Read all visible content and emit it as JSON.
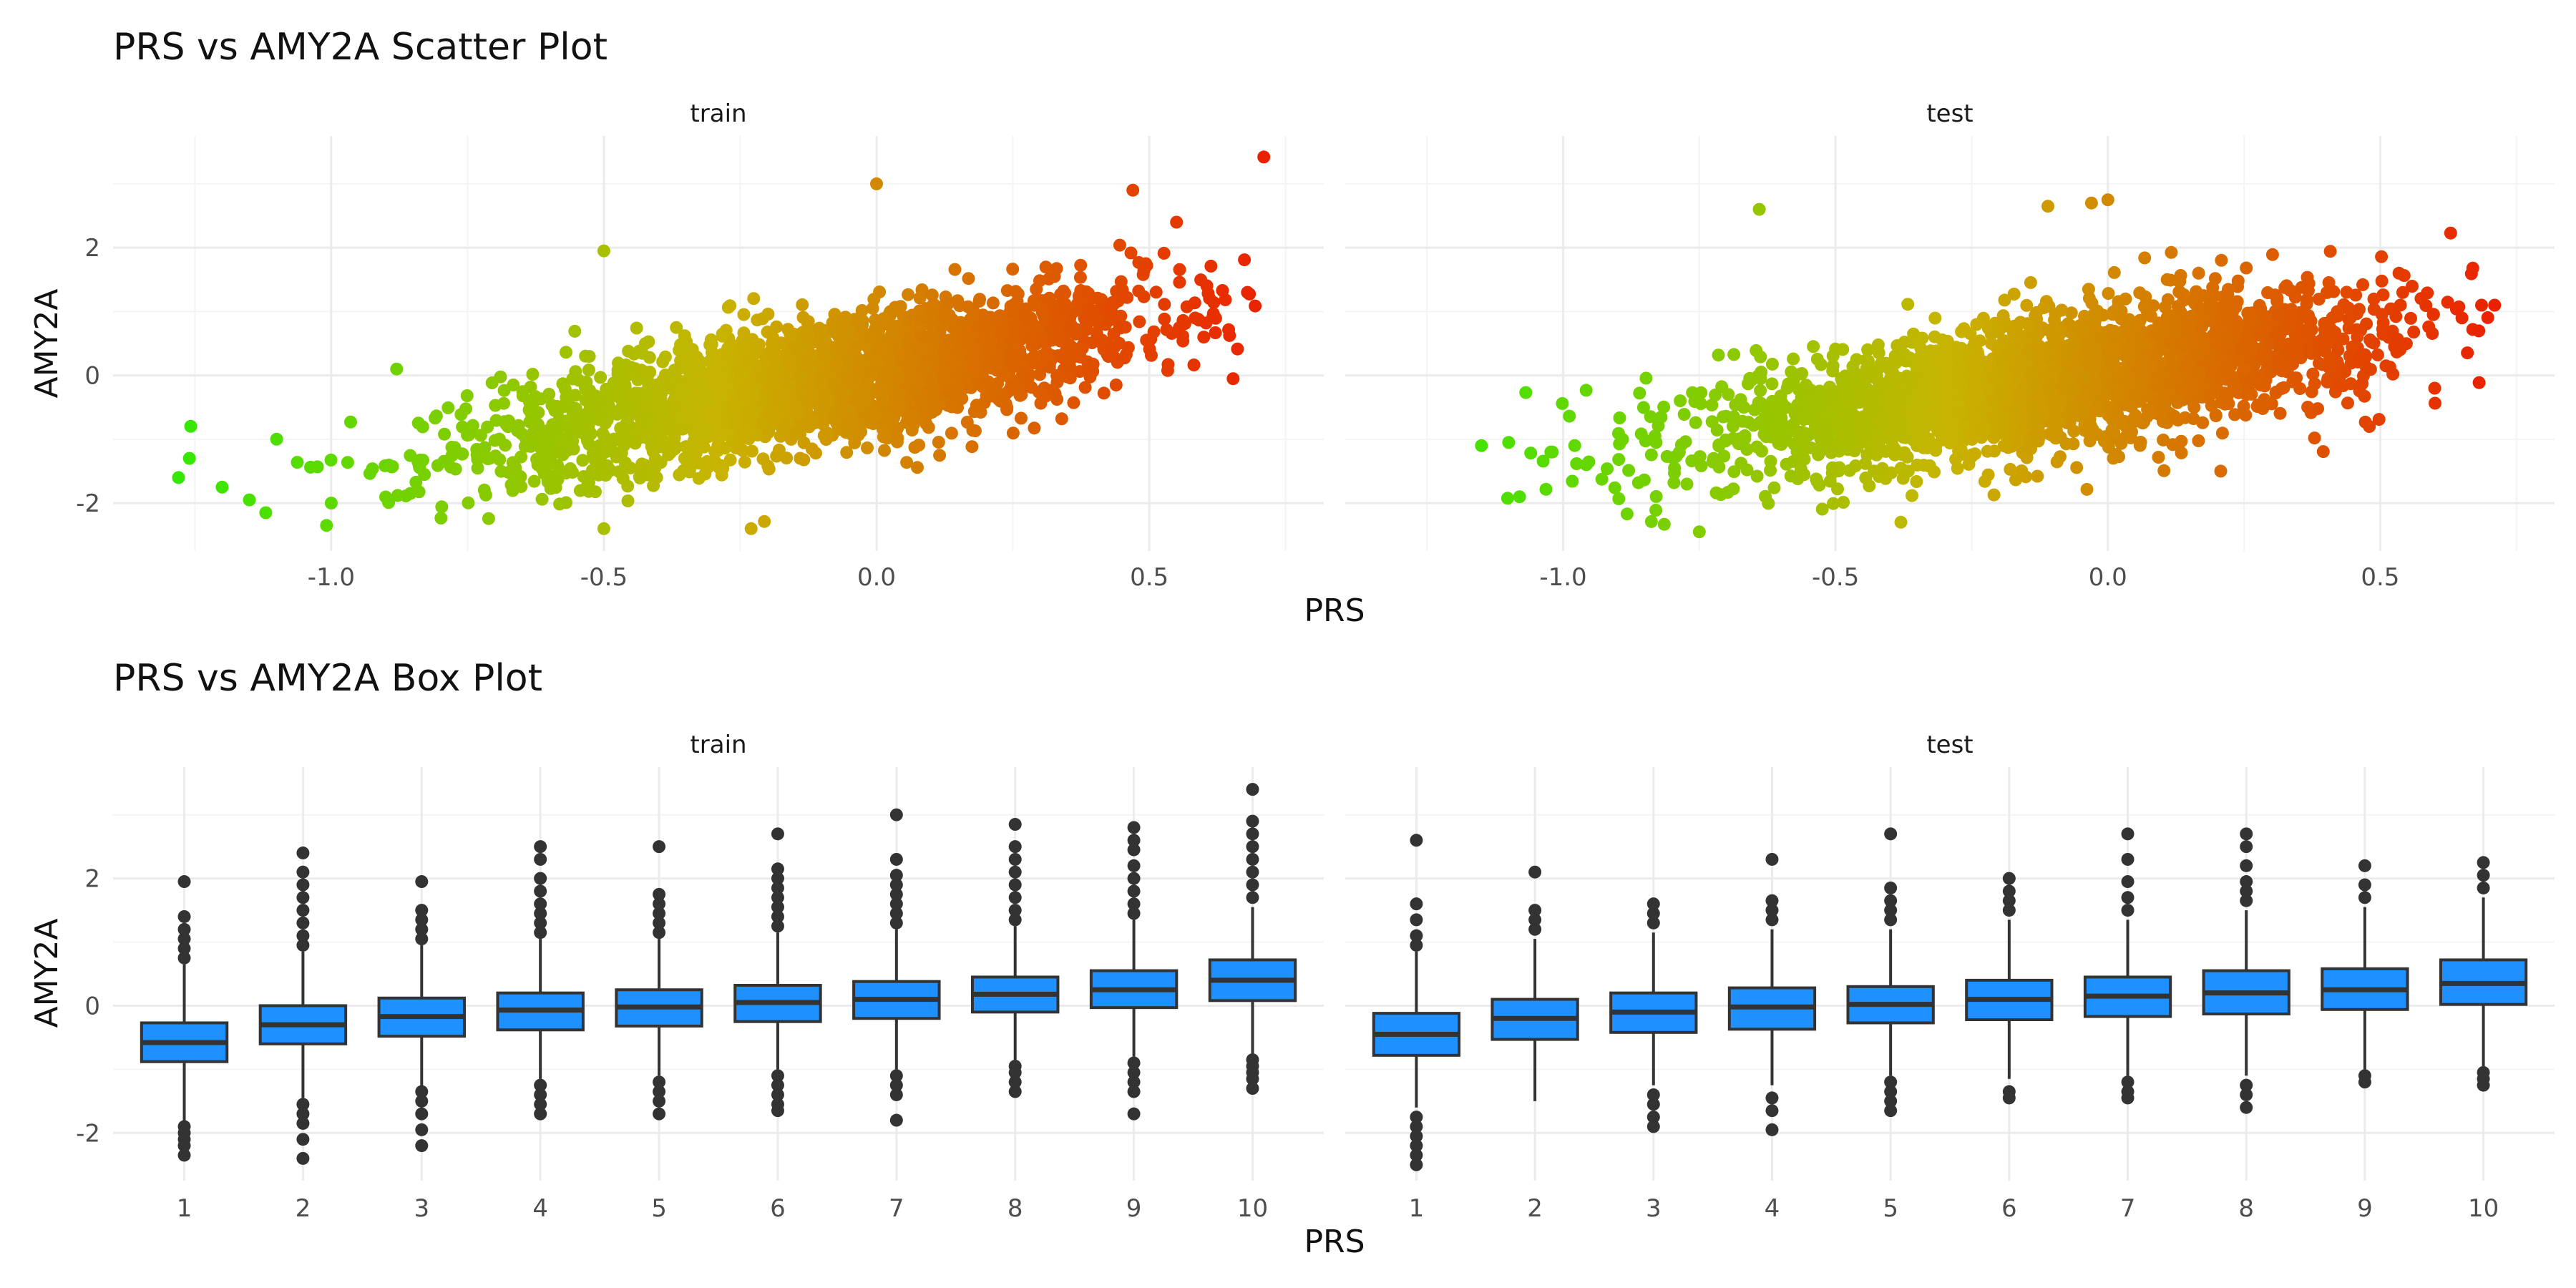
{
  "chart_data": [
    {
      "type": "scatter",
      "title": "PRS vs AMY2A Scatter Plot",
      "xlabel": "PRS",
      "ylabel": "AMY2A",
      "xlim": [
        -1.4,
        0.82
      ],
      "ylim": [
        -2.75,
        3.75
      ],
      "xticks": [
        -1.0,
        -0.5,
        0.0,
        0.5
      ],
      "xtick_labels": [
        "-1.0",
        "-0.5",
        "0.0",
        "0.5"
      ],
      "yticks": [
        -2,
        0,
        2
      ],
      "ytick_labels": [
        "-2",
        "0",
        "2"
      ],
      "color_scale": {
        "low": "#22ee00",
        "mid": "#c8b400",
        "high": "#ee1100",
        "variable": "PRS"
      },
      "grid": true,
      "legend": "none",
      "panels": [
        {
          "name": "train",
          "trend": {
            "slope": 1.55,
            "intercept": 0.05,
            "residual_sd": 0.5
          },
          "x_range": [
            -1.28,
            0.71
          ],
          "highlight_points": [
            {
              "x": 0.71,
              "y": 3.42
            },
            {
              "x": -1.28,
              "y": -1.6
            },
            {
              "x": -1.26,
              "y": -1.3
            },
            {
              "x": -1.2,
              "y": -1.75
            },
            {
              "x": -1.15,
              "y": -1.95
            },
            {
              "x": -1.12,
              "y": -2.15
            },
            {
              "x": -1.1,
              "y": -1.0
            },
            {
              "x": -1.0,
              "y": -2.0
            },
            {
              "x": 0.0,
              "y": 3.0
            },
            {
              "x": -0.5,
              "y": -2.4
            },
            {
              "x": -0.23,
              "y": -2.4
            },
            {
              "x": 0.47,
              "y": 2.9
            },
            {
              "x": 0.55,
              "y": 2.4
            },
            {
              "x": 0.68,
              "y": 1.3
            },
            {
              "x": 0.6,
              "y": 0.6
            },
            {
              "x": -0.88,
              "y": 0.1
            },
            {
              "x": -0.5,
              "y": 1.95
            }
          ]
        },
        {
          "name": "test",
          "trend": {
            "slope": 1.35,
            "intercept": 0.05,
            "residual_sd": 0.52
          },
          "x_range": [
            -1.15,
            0.71
          ],
          "highlight_points": [
            {
              "x": -0.64,
              "y": 2.6
            },
            {
              "x": 0.0,
              "y": 2.75
            },
            {
              "x": -0.03,
              "y": 2.7
            },
            {
              "x": -0.11,
              "y": 2.65
            },
            {
              "x": 0.67,
              "y": 1.68
            },
            {
              "x": 0.71,
              "y": 1.1
            },
            {
              "x": -1.15,
              "y": -1.1
            },
            {
              "x": -1.1,
              "y": -1.05
            },
            {
              "x": -1.08,
              "y": -1.9
            },
            {
              "x": -1.02,
              "y": -1.2
            },
            {
              "x": -0.75,
              "y": -2.45
            },
            {
              "x": -0.38,
              "y": -2.3
            },
            {
              "x": 0.48,
              "y": -0.8
            },
            {
              "x": 0.6,
              "y": -0.2
            },
            {
              "x": 0.65,
              "y": 0.9
            }
          ]
        }
      ]
    },
    {
      "type": "box",
      "title": "PRS vs AMY2A Box Plot",
      "xlabel": "PRS",
      "ylabel": "AMY2A",
      "categories": [
        "1",
        "2",
        "3",
        "4",
        "5",
        "6",
        "7",
        "8",
        "9",
        "10"
      ],
      "ylim": [
        -2.75,
        3.75
      ],
      "yticks": [
        -2,
        0,
        2
      ],
      "ytick_labels": [
        "-2",
        "0",
        "2"
      ],
      "box_color": "#1e90ff",
      "grid": true,
      "legend": "none",
      "panels": [
        {
          "name": "train",
          "boxes": [
            {
              "category": "1",
              "q1": -0.88,
              "median": -0.58,
              "q3": -0.27,
              "lower": -1.8,
              "upper": 0.65,
              "outliers": [
                -1.9,
                -2.0,
                -2.1,
                -2.2,
                -2.35,
                0.75,
                0.9,
                1.05,
                1.2,
                1.4,
                1.95
              ]
            },
            {
              "category": "2",
              "q1": -0.6,
              "median": -0.3,
              "q3": 0.0,
              "lower": -1.45,
              "upper": 0.85,
              "outliers": [
                -1.55,
                -1.7,
                -1.85,
                -2.1,
                -2.4,
                0.95,
                1.1,
                1.3,
                1.5,
                1.7,
                1.9,
                2.1,
                2.4
              ]
            },
            {
              "category": "3",
              "q1": -0.48,
              "median": -0.17,
              "q3": 0.12,
              "lower": -1.28,
              "upper": 0.95,
              "outliers": [
                -1.35,
                -1.5,
                -1.7,
                -1.95,
                -2.2,
                1.05,
                1.2,
                1.35,
                1.5,
                1.95
              ]
            },
            {
              "category": "4",
              "q1": -0.38,
              "median": -0.07,
              "q3": 0.2,
              "lower": -1.15,
              "upper": 1.05,
              "outliers": [
                -1.25,
                -1.4,
                -1.55,
                -1.7,
                1.15,
                1.3,
                1.45,
                1.6,
                1.8,
                2.0,
                2.3,
                2.5
              ]
            },
            {
              "category": "5",
              "q1": -0.32,
              "median": -0.02,
              "q3": 0.25,
              "lower": -1.1,
              "upper": 1.05,
              "outliers": [
                -1.2,
                -1.35,
                -1.5,
                -1.7,
                1.15,
                1.3,
                1.45,
                1.6,
                1.75,
                2.5
              ]
            },
            {
              "category": "6",
              "q1": -0.25,
              "median": 0.05,
              "q3": 0.32,
              "lower": -1.0,
              "upper": 1.15,
              "outliers": [
                -1.1,
                -1.25,
                -1.4,
                -1.55,
                -1.65,
                1.25,
                1.4,
                1.55,
                1.7,
                1.85,
                2.0,
                2.15,
                2.7
              ]
            },
            {
              "category": "7",
              "q1": -0.2,
              "median": 0.1,
              "q3": 0.38,
              "lower": -1.0,
              "upper": 1.2,
              "outliers": [
                -1.1,
                -1.25,
                -1.4,
                -1.8,
                1.3,
                1.45,
                1.6,
                1.75,
                1.9,
                2.05,
                2.3,
                3.0
              ]
            },
            {
              "category": "8",
              "q1": -0.1,
              "median": 0.18,
              "q3": 0.45,
              "lower": -0.85,
              "upper": 1.25,
              "outliers": [
                -0.95,
                -1.05,
                -1.2,
                -1.35,
                1.35,
                1.5,
                1.7,
                1.9,
                2.1,
                2.3,
                2.5,
                2.85
              ]
            },
            {
              "category": "9",
              "q1": -0.03,
              "median": 0.25,
              "q3": 0.55,
              "lower": -0.8,
              "upper": 1.35,
              "outliers": [
                -0.9,
                -1.05,
                -1.2,
                -1.35,
                -1.7,
                1.45,
                1.6,
                1.8,
                2.0,
                2.2,
                2.45,
                2.6,
                2.8
              ]
            },
            {
              "category": "10",
              "q1": 0.08,
              "median": 0.4,
              "q3": 0.72,
              "lower": -0.75,
              "upper": 1.55,
              "outliers": [
                -0.85,
                -0.95,
                -1.05,
                -1.15,
                -1.3,
                1.7,
                1.9,
                2.1,
                2.3,
                2.5,
                2.7,
                2.9,
                3.4
              ]
            }
          ]
        },
        {
          "name": "test",
          "boxes": [
            {
              "category": "1",
              "q1": -0.78,
              "median": -0.45,
              "q3": -0.12,
              "lower": -1.6,
              "upper": 0.85,
              "outliers": [
                -1.75,
                -1.9,
                -2.05,
                -2.2,
                -2.35,
                -2.5,
                0.95,
                1.1,
                1.35,
                1.6,
                2.6
              ]
            },
            {
              "category": "2",
              "q1": -0.53,
              "median": -0.2,
              "q3": 0.1,
              "lower": -1.5,
              "upper": 1.05,
              "outliers": [
                1.2,
                1.35,
                1.5,
                2.1
              ]
            },
            {
              "category": "3",
              "q1": -0.42,
              "median": -0.1,
              "q3": 0.2,
              "lower": -1.25,
              "upper": 1.15,
              "outliers": [
                -1.4,
                -1.55,
                -1.75,
                -1.9,
                1.3,
                1.45,
                1.6
              ]
            },
            {
              "category": "4",
              "q1": -0.37,
              "median": -0.02,
              "q3": 0.28,
              "lower": -1.25,
              "upper": 1.2,
              "outliers": [
                -1.45,
                -1.65,
                -1.95,
                1.35,
                1.5,
                1.65,
                2.3
              ]
            },
            {
              "category": "5",
              "q1": -0.27,
              "median": 0.02,
              "q3": 0.3,
              "lower": -1.1,
              "upper": 1.2,
              "outliers": [
                -1.2,
                -1.35,
                -1.5,
                -1.65,
                1.35,
                1.5,
                1.65,
                1.85,
                2.7
              ]
            },
            {
              "category": "6",
              "q1": -0.22,
              "median": 0.1,
              "q3": 0.4,
              "lower": -1.15,
              "upper": 1.35,
              "outliers": [
                -1.35,
                -1.45,
                1.5,
                1.65,
                1.8,
                2.0
              ]
            },
            {
              "category": "7",
              "q1": -0.17,
              "median": 0.15,
              "q3": 0.45,
              "lower": -1.1,
              "upper": 1.35,
              "outliers": [
                -1.2,
                -1.35,
                -1.45,
                1.5,
                1.7,
                1.95,
                2.3,
                2.7
              ]
            },
            {
              "category": "8",
              "q1": -0.13,
              "median": 0.2,
              "q3": 0.55,
              "lower": -1.1,
              "upper": 1.5,
              "outliers": [
                -1.25,
                -1.4,
                -1.6,
                1.65,
                1.8,
                1.95,
                2.2,
                2.5,
                2.7
              ]
            },
            {
              "category": "9",
              "q1": -0.06,
              "median": 0.25,
              "q3": 0.58,
              "lower": -1.0,
              "upper": 1.55,
              "outliers": [
                -1.1,
                -1.2,
                1.7,
                1.9,
                2.2
              ]
            },
            {
              "category": "10",
              "q1": 0.02,
              "median": 0.35,
              "q3": 0.72,
              "lower": -0.95,
              "upper": 1.7,
              "outliers": [
                -1.05,
                -1.15,
                -1.25,
                1.85,
                2.05,
                2.25
              ]
            }
          ]
        }
      ]
    }
  ]
}
